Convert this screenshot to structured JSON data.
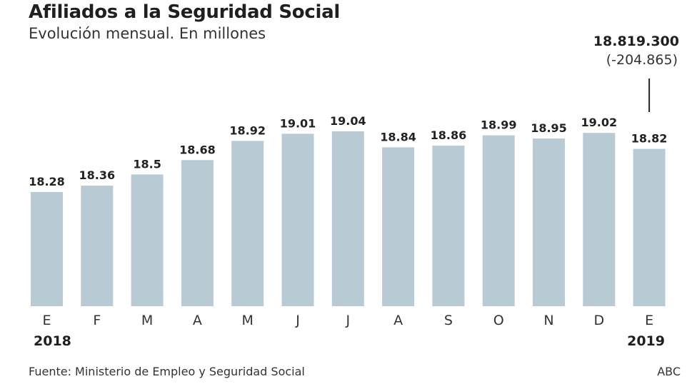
{
  "header": {
    "title": "Afiliados a la Seguridad Social",
    "subtitle": "Evolución mensual. En millones"
  },
  "callout": {
    "value": "18.819.300",
    "change": "(-204.865)"
  },
  "years": {
    "start": "2018",
    "end": "2019"
  },
  "footer": {
    "source": "Fuente: Ministerio de Empleo y Seguridad Social",
    "credit": "ABC"
  },
  "colors": {
    "bar": "#b8cad3",
    "text": "#222222",
    "callout_line": "#222222"
  },
  "chart_data": {
    "type": "bar",
    "title": "Afiliados a la Seguridad Social",
    "subtitle": "Evolución mensual. En millones",
    "categories": [
      "E",
      "F",
      "M",
      "A",
      "M",
      "J",
      "J",
      "A",
      "S",
      "O",
      "N",
      "D",
      "E"
    ],
    "values": [
      18.28,
      18.36,
      18.5,
      18.68,
      18.92,
      19.01,
      19.04,
      18.84,
      18.86,
      18.99,
      18.95,
      19.02,
      18.82
    ],
    "data_labels": [
      "18.28",
      "18.36",
      "18.5",
      "18.68",
      "18.92",
      "19.01",
      "19.04",
      "18.84",
      "18.86",
      "18.99",
      "18.95",
      "19.02",
      "18.82"
    ],
    "xlabel": "",
    "ylabel": "",
    "ylim": [
      16.85,
      19.04
    ],
    "grid": false,
    "legend": "none",
    "annotation": {
      "category_index": 12,
      "value": "18.819.300",
      "change": "(-204.865)"
    }
  }
}
